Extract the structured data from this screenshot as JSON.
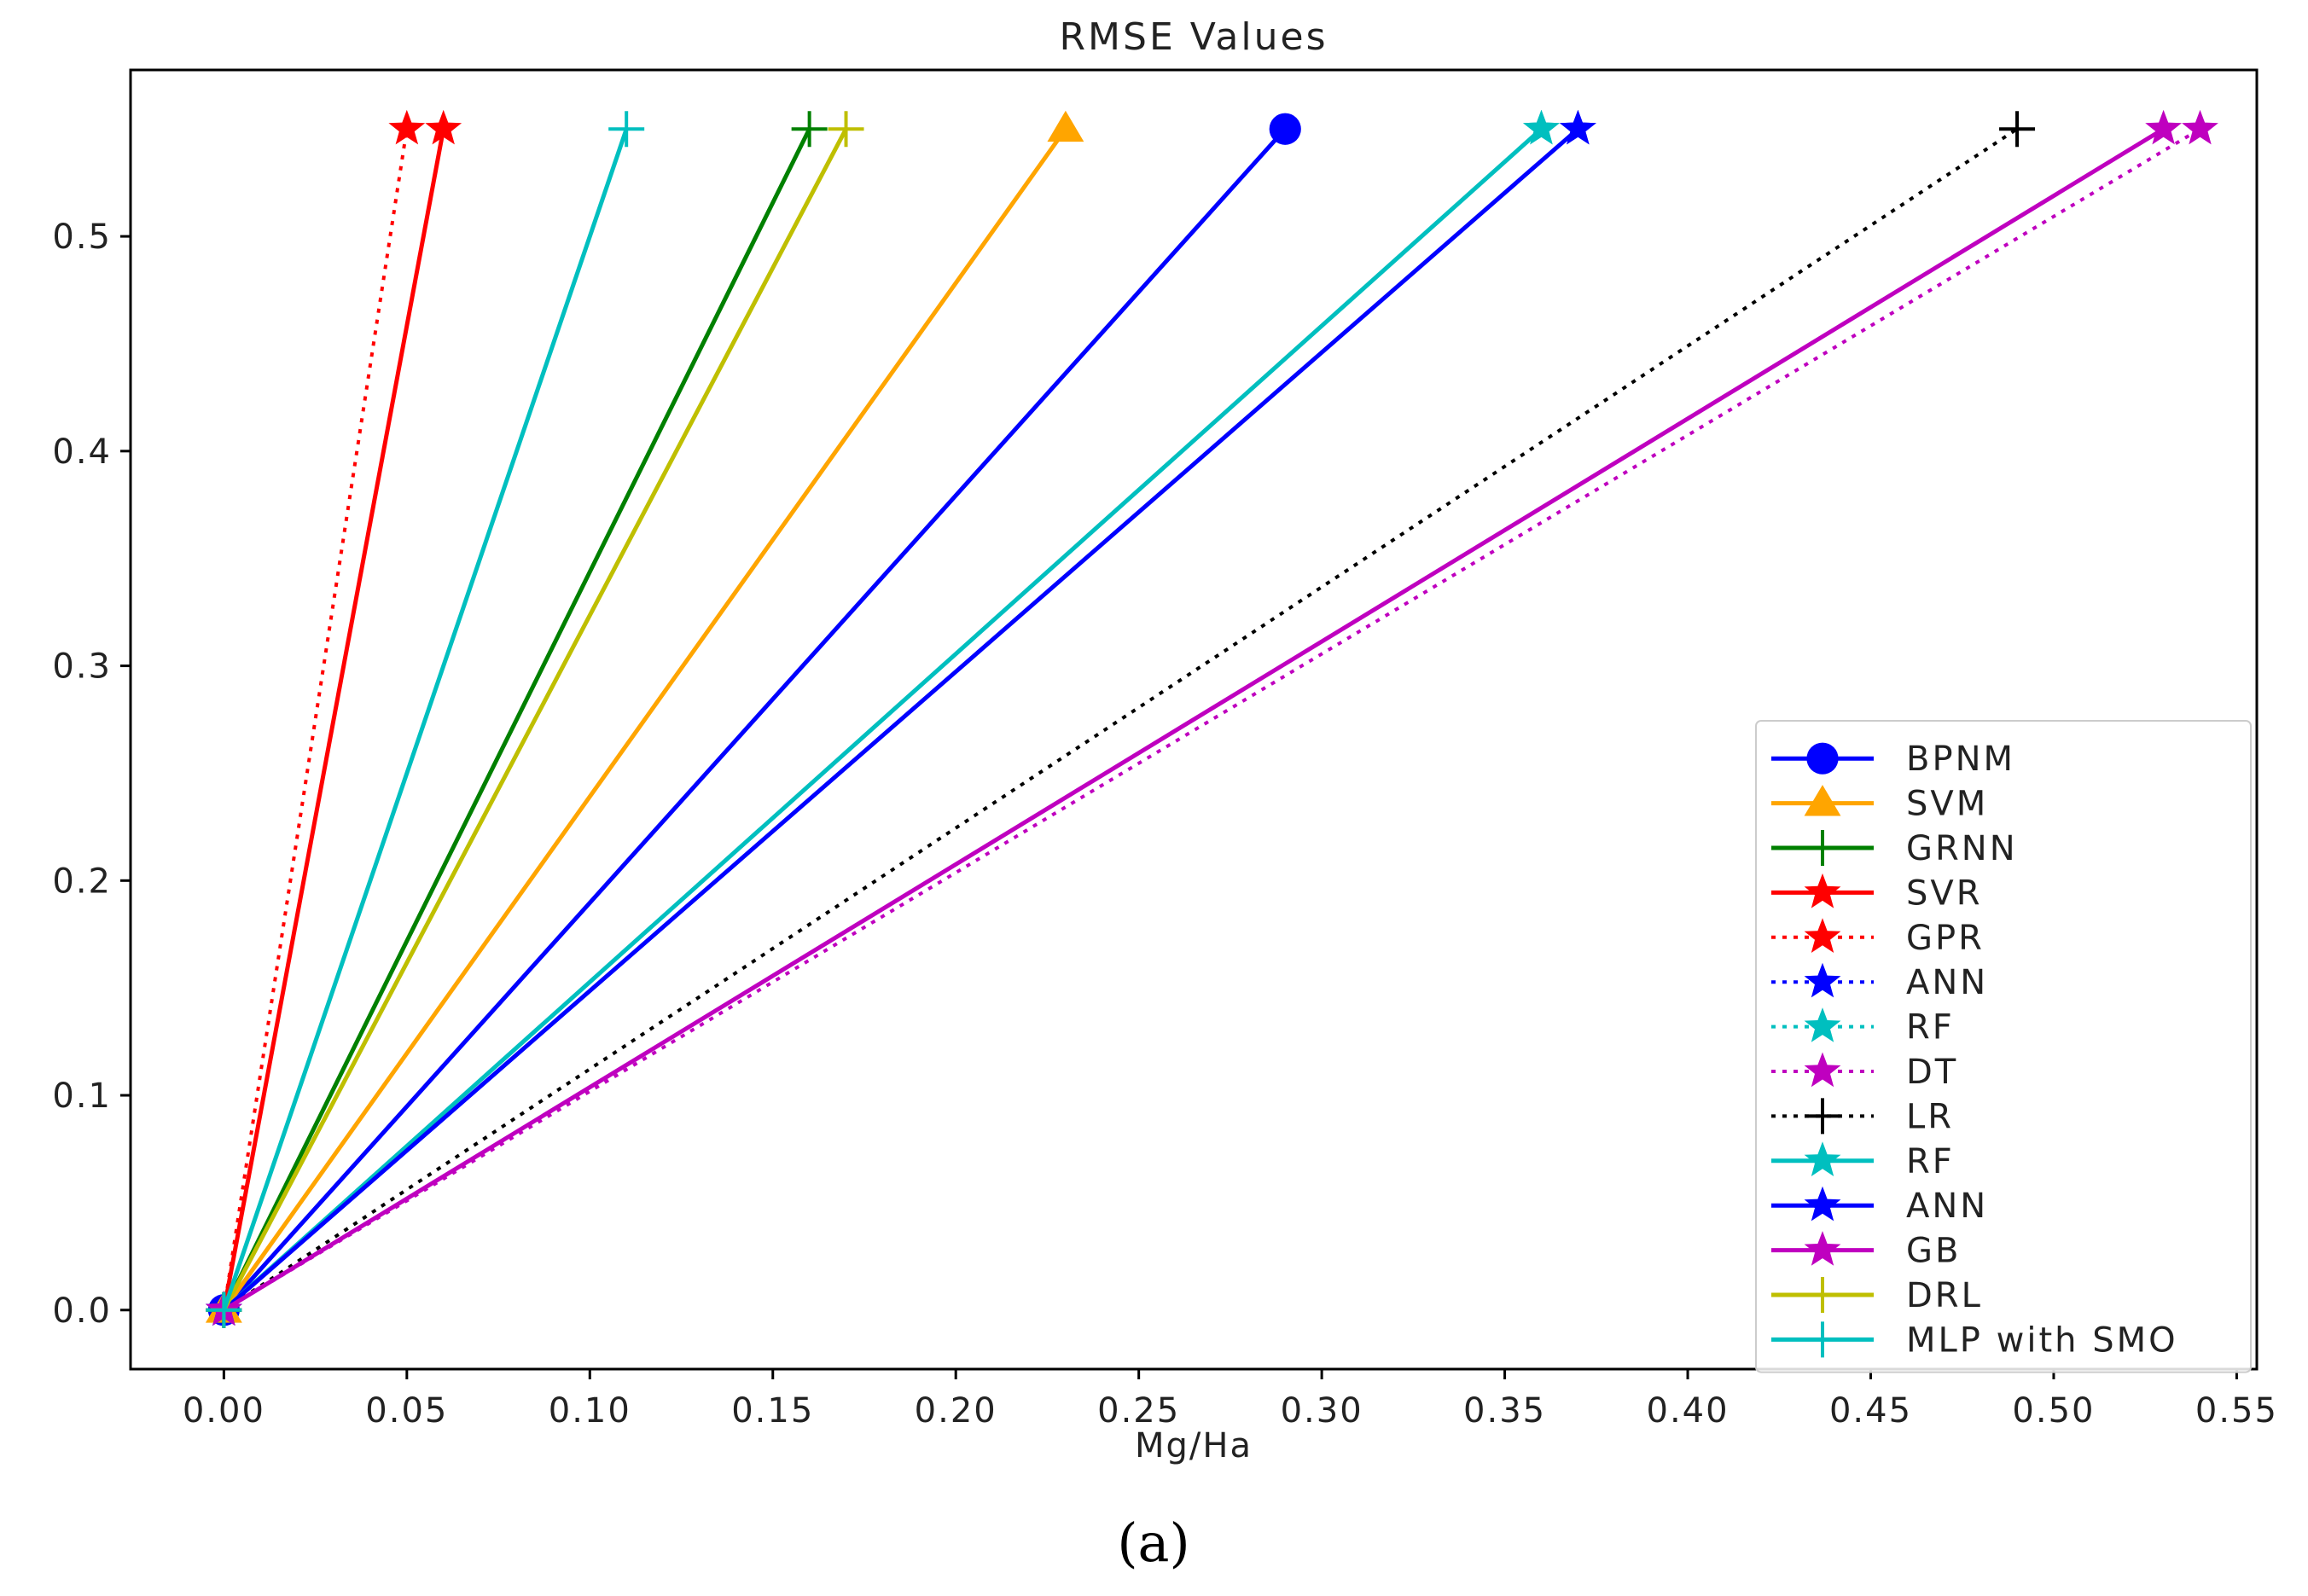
{
  "chart_data": {
    "type": "line",
    "title": "RMSE Values",
    "xlabel": "Mg/Ha",
    "ylabel": "",
    "xlim": [
      -0.0255,
      0.5555
    ],
    "ylim": [
      -0.0275,
      0.5775
    ],
    "xticks": [
      "0.00",
      "0.05",
      "0.10",
      "0.15",
      "0.20",
      "0.25",
      "0.30",
      "0.35",
      "0.40",
      "0.45",
      "0.50",
      "0.55"
    ],
    "yticks": [
      "0.0",
      "0.1",
      "0.2",
      "0.3",
      "0.4",
      "0.5"
    ],
    "legend_position": "bottom-right",
    "series": [
      {
        "name": "BPNM",
        "color": "#0000ff",
        "style": "solid",
        "marker": "circle",
        "x": [
          0,
          0.29
        ],
        "y": [
          0,
          0.55
        ]
      },
      {
        "name": "SVM",
        "color": "#ffa500",
        "style": "solid",
        "marker": "triangle",
        "x": [
          0,
          0.23
        ],
        "y": [
          0,
          0.55
        ]
      },
      {
        "name": "GRNN",
        "color": "#008000",
        "style": "solid",
        "marker": "plus",
        "x": [
          0,
          0.16
        ],
        "y": [
          0,
          0.55
        ]
      },
      {
        "name": "SVR",
        "color": "#ff0000",
        "style": "solid",
        "marker": "star",
        "x": [
          0,
          0.06
        ],
        "y": [
          0,
          0.55
        ]
      },
      {
        "name": "GPR",
        "color": "#ff0000",
        "style": "dotted",
        "marker": "star",
        "x": [
          0,
          0.05
        ],
        "y": [
          0,
          0.55
        ]
      },
      {
        "name": "ANN",
        "color": "#0000ff",
        "style": "dotted",
        "marker": "star",
        "x": [
          0,
          0.37
        ],
        "y": [
          0,
          0.55
        ]
      },
      {
        "name": "RF",
        "color": "#00bfbf",
        "style": "dotted",
        "marker": "star",
        "x": [
          0,
          0.36
        ],
        "y": [
          0,
          0.55
        ]
      },
      {
        "name": "DT",
        "color": "#bf00bf",
        "style": "dotted",
        "marker": "star",
        "x": [
          0,
          0.54
        ],
        "y": [
          0,
          0.55
        ]
      },
      {
        "name": "LR",
        "color": "#000000",
        "style": "dotted",
        "marker": "plus",
        "x": [
          0,
          0.49
        ],
        "y": [
          0,
          0.55
        ]
      },
      {
        "name": "RF",
        "color": "#00bfbf",
        "style": "solid",
        "marker": "star",
        "x": [
          0,
          0.36
        ],
        "y": [
          0,
          0.55
        ]
      },
      {
        "name": "ANN",
        "color": "#0000ff",
        "style": "solid",
        "marker": "star",
        "x": [
          0,
          0.37
        ],
        "y": [
          0,
          0.55
        ]
      },
      {
        "name": "GB",
        "color": "#bf00bf",
        "style": "solid",
        "marker": "star",
        "x": [
          0,
          0.53
        ],
        "y": [
          0,
          0.55
        ]
      },
      {
        "name": "DRL",
        "color": "#bfbf00",
        "style": "solid",
        "marker": "plus",
        "x": [
          0,
          0.17
        ],
        "y": [
          0,
          0.55
        ]
      },
      {
        "name": "MLP with SMO",
        "color": "#00bfbf",
        "style": "solid",
        "marker": "plus",
        "x": [
          0,
          0.11
        ],
        "y": [
          0,
          0.55
        ]
      }
    ]
  },
  "caption": "(a)"
}
